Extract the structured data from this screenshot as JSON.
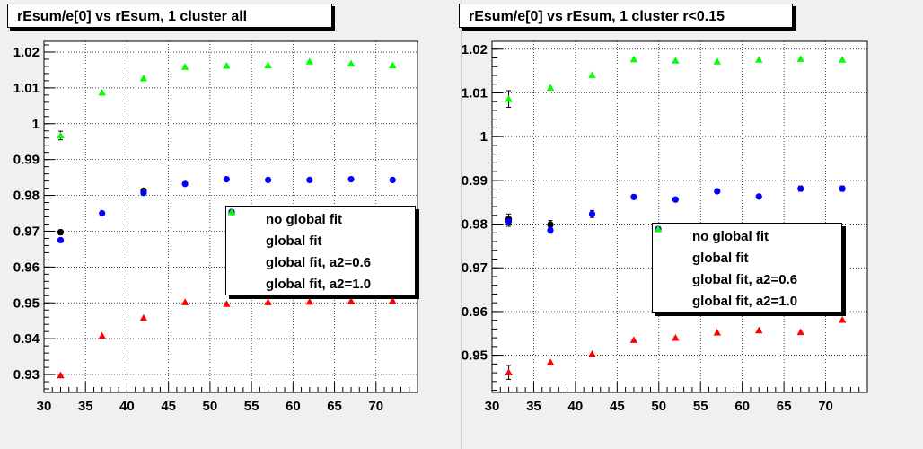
{
  "chart_data": [
    {
      "type": "scatter",
      "title": "rEsum/e[0] vs rEsum, 1 cluster all",
      "xlim": [
        30,
        75
      ],
      "ylim": [
        0.925,
        1.023
      ],
      "x_ticks": [
        "30",
        "35",
        "40",
        "45",
        "50",
        "55",
        "60",
        "65",
        "70"
      ],
      "y_ticks": [
        "0.93",
        "0.94",
        "0.95",
        "0.96",
        "0.97",
        "0.98",
        "0.99",
        "1",
        "1.01",
        "1.02"
      ],
      "grid": true,
      "legend_position": "center-right",
      "series": [
        {
          "name": "no global fit",
          "color": "#000000",
          "marker": "circle",
          "x": [
            32,
            42
          ],
          "y": [
            0.9697,
            0.9813
          ],
          "err": [
            0.0007,
            0.0006
          ]
        },
        {
          "name": "global fit",
          "color": "#0000ff",
          "marker": "circle",
          "x": [
            32,
            37,
            42,
            47,
            52,
            57,
            62,
            67,
            72
          ],
          "y": [
            0.9675,
            0.975,
            0.9807,
            0.9832,
            0.9845,
            0.9843,
            0.9843,
            0.9845,
            0.9843
          ],
          "err": [
            0.0006,
            0,
            0,
            0,
            0,
            0,
            0,
            0,
            0
          ]
        },
        {
          "name": "global fit, a2=0.6",
          "color": "#ff0000",
          "marker": "triangle",
          "x": [
            32,
            37,
            42,
            47,
            52,
            57,
            62,
            67,
            72
          ],
          "y": [
            0.9298,
            0.9408,
            0.9458,
            0.9502,
            0.9497,
            0.9502,
            0.9503,
            0.9505,
            0.9506
          ],
          "err": [
            0,
            0,
            0,
            0,
            0,
            0,
            0,
            0,
            0
          ]
        },
        {
          "name": "global fit, a2=1.0",
          "color": "#00ff00",
          "marker": "triangle",
          "x": [
            32,
            37,
            42,
            47,
            52,
            57,
            62,
            67,
            72
          ],
          "y": [
            0.9967,
            1.0087,
            1.0127,
            1.0159,
            1.0162,
            1.0163,
            1.0174,
            1.0168,
            1.0163
          ],
          "err": [
            0.0012,
            0,
            0,
            0,
            0,
            0,
            0,
            0,
            0
          ]
        }
      ]
    },
    {
      "type": "scatter",
      "title": "rEsum/e[0] vs rEsum, 1 cluster r<0.15",
      "xlim": [
        30,
        75
      ],
      "ylim": [
        0.9415,
        1.0218
      ],
      "x_ticks": [
        "30",
        "35",
        "40",
        "45",
        "50",
        "55",
        "60",
        "65",
        "70"
      ],
      "y_ticks": [
        "0.95",
        "0.96",
        "0.97",
        "0.98",
        "0.99",
        "1",
        "1.01",
        "1.02"
      ],
      "grid": true,
      "legend_position": "center-right",
      "series": [
        {
          "name": "no global fit",
          "color": "#000000",
          "marker": "circle",
          "x": [
            32,
            37
          ],
          "y": [
            0.9811,
            0.9799
          ],
          "err": [
            0.0012,
            0.0009
          ]
        },
        {
          "name": "global fit",
          "color": "#0000ff",
          "marker": "circle",
          "x": [
            32,
            37,
            42,
            47,
            52,
            57,
            62,
            67,
            72
          ],
          "y": [
            0.9806,
            0.9786,
            0.9823,
            0.9862,
            0.9856,
            0.9875,
            0.9863,
            0.9881,
            0.9881
          ],
          "err": [
            0.0011,
            0.0007,
            0.0008,
            0.0005,
            0.0005,
            0.0005,
            0.0005,
            0.0006,
            0.0006
          ]
        },
        {
          "name": "global fit, a2=0.6",
          "color": "#ff0000",
          "marker": "triangle",
          "x": [
            32,
            37,
            42,
            47,
            52,
            57,
            62,
            67,
            72
          ],
          "y": [
            0.9461,
            0.9484,
            0.9503,
            0.9535,
            0.954,
            0.9552,
            0.9557,
            0.9553,
            0.9581
          ],
          "err": [
            0.0016,
            0,
            0,
            0,
            0,
            0,
            0,
            0,
            0
          ]
        },
        {
          "name": "global fit, a2=1.0",
          "color": "#00ff00",
          "marker": "triangle",
          "x": [
            32,
            37,
            42,
            47,
            52,
            57,
            62,
            67,
            72
          ],
          "y": [
            1.0086,
            1.0112,
            1.0141,
            1.0177,
            1.0174,
            1.0172,
            1.0176,
            1.0178,
            1.0176
          ],
          "err": [
            0.0019,
            0,
            0,
            0,
            0,
            0,
            0,
            0,
            0
          ]
        }
      ]
    }
  ]
}
